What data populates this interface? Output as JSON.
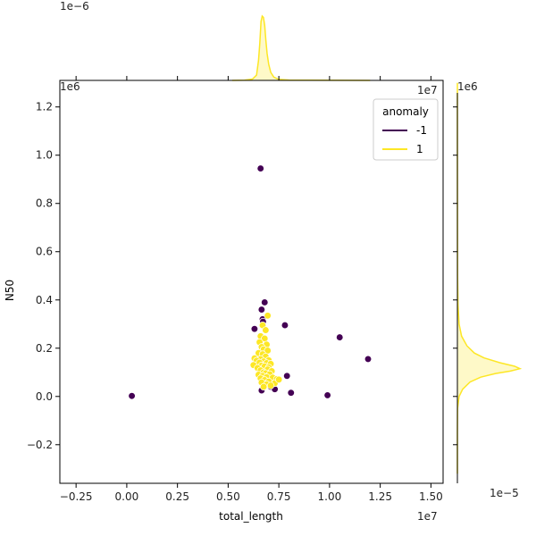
{
  "chart_data": {
    "type": "scatter",
    "title": "",
    "xlabel": "total_length",
    "ylabel": "N50",
    "x_scale_label": "1e7",
    "y_scale_label": "1e6",
    "top_marginal_scale_label": "1e−6",
    "right_marginal_scale_label": "1e−5",
    "xlim": [
      -3300000,
      15600000
    ],
    "ylim": [
      -360000,
      1310000
    ],
    "x_ticks": [
      -2500000,
      0,
      2500000,
      5000000,
      7500000,
      10000000,
      12500000,
      15000000
    ],
    "x_tick_labels": [
      "−0.25",
      "0.00",
      "0.25",
      "0.50",
      "0.75",
      "1.00",
      "1.25",
      "1.50"
    ],
    "y_ticks": [
      -200000,
      0,
      200000,
      400000,
      600000,
      800000,
      1000000,
      1200000
    ],
    "y_tick_labels": [
      "−0.2",
      "0.0",
      "0.2",
      "0.4",
      "0.6",
      "0.8",
      "1.0",
      "1.2"
    ],
    "grid": false,
    "legend": {
      "title": "anomaly",
      "placement": "top-right",
      "entries": [
        {
          "label": "-1",
          "color": "#440154"
        },
        {
          "label": "1",
          "color": "#fde725"
        }
      ]
    },
    "series": [
      {
        "name": "-1",
        "color": "#440154",
        "points": [
          [
            6600000,
            945000
          ],
          [
            6800000,
            390000
          ],
          [
            6650000,
            360000
          ],
          [
            6700000,
            320000
          ],
          [
            6720000,
            310000
          ],
          [
            7800000,
            295000
          ],
          [
            6300000,
            280000
          ],
          [
            10500000,
            245000
          ],
          [
            11900000,
            155000
          ],
          [
            7900000,
            85000
          ],
          [
            6550000,
            180000
          ],
          [
            6500000,
            160000
          ],
          [
            7100000,
            40000
          ],
          [
            7300000,
            30000
          ],
          [
            6650000,
            25000
          ],
          [
            8100000,
            15000
          ],
          [
            9900000,
            5000
          ],
          [
            250000,
            2000
          ]
        ]
      },
      {
        "name": "1",
        "color": "#fde725",
        "points": [
          [
            6950000,
            335000
          ],
          [
            6700000,
            295000
          ],
          [
            6850000,
            275000
          ],
          [
            6600000,
            250000
          ],
          [
            6800000,
            240000
          ],
          [
            6550000,
            225000
          ],
          [
            6900000,
            215000
          ],
          [
            6650000,
            205000
          ],
          [
            6750000,
            195000
          ],
          [
            6950000,
            190000
          ],
          [
            6500000,
            180000
          ],
          [
            6700000,
            175000
          ],
          [
            6850000,
            165000
          ],
          [
            6300000,
            158000
          ],
          [
            6600000,
            155000
          ],
          [
            7000000,
            150000
          ],
          [
            6400000,
            148000
          ],
          [
            6750000,
            145000
          ],
          [
            6550000,
            140000
          ],
          [
            6900000,
            138000
          ],
          [
            7100000,
            135000
          ],
          [
            6250000,
            130000
          ],
          [
            6650000,
            128000
          ],
          [
            6800000,
            125000
          ],
          [
            7000000,
            120000
          ],
          [
            6450000,
            118000
          ],
          [
            6950000,
            112000
          ],
          [
            6600000,
            108000
          ],
          [
            7150000,
            105000
          ],
          [
            6750000,
            100000
          ],
          [
            6850000,
            96000
          ],
          [
            7050000,
            92000
          ],
          [
            6500000,
            90000
          ],
          [
            6700000,
            85000
          ],
          [
            6900000,
            80000
          ],
          [
            7200000,
            78000
          ],
          [
            6600000,
            75000
          ],
          [
            7400000,
            72000
          ],
          [
            6800000,
            68000
          ],
          [
            7000000,
            62000
          ],
          [
            6650000,
            58000
          ],
          [
            7300000,
            55000
          ],
          [
            6900000,
            50000
          ],
          [
            7100000,
            45000
          ],
          [
            6750000,
            40000
          ],
          [
            7500000,
            70000
          ]
        ]
      }
    ],
    "marginal_top": {
      "type": "kde",
      "peak_x": 6700000,
      "peak_density": 9.6e-07,
      "x_density": [
        [
          5200000,
          0
        ],
        [
          5800000,
          4e-09
        ],
        [
          6200000,
          2e-08
        ],
        [
          6400000,
          8e-08
        ],
        [
          6500000,
          3e-07
        ],
        [
          6560000,
          5.5e-07
        ],
        [
          6620000,
          8.8e-07
        ],
        [
          6680000,
          9.6e-07
        ],
        [
          6740000,
          9.4e-07
        ],
        [
          6800000,
          8.2e-07
        ],
        [
          6860000,
          6e-07
        ],
        [
          6920000,
          4e-07
        ],
        [
          7000000,
          2.4e-07
        ],
        [
          7100000,
          1.2e-07
        ],
        [
          7250000,
          5e-08
        ],
        [
          7500000,
          1.5e-08
        ],
        [
          8000000,
          5e-09
        ],
        [
          9000000,
          2e-09
        ],
        [
          10500000,
          1e-09
        ],
        [
          12000000,
          0
        ]
      ]
    },
    "marginal_right": {
      "type": "kde",
      "peak_y": 115000,
      "peak_density": 2.95e-05,
      "y_density": [
        [
          -320000,
          0
        ],
        [
          -150000,
          1e-08
        ],
        [
          -50000,
          1e-07
        ],
        [
          0,
          8e-07
        ],
        [
          30000,
          2.5e-06
        ],
        [
          60000,
          6e-06
        ],
        [
          80000,
          1.1e-05
        ],
        [
          95000,
          1.8e-05
        ],
        [
          105000,
          2.5e-05
        ],
        [
          115000,
          2.95e-05
        ],
        [
          125000,
          2.7e-05
        ],
        [
          140000,
          2e-05
        ],
        [
          160000,
          1.25e-05
        ],
        [
          180000,
          8e-06
        ],
        [
          210000,
          4.5e-06
        ],
        [
          250000,
          2e-06
        ],
        [
          300000,
          8e-07
        ],
        [
          380000,
          3e-07
        ],
        [
          500000,
          1e-07
        ],
        [
          700000,
          3e-08
        ],
        [
          1000000,
          1e-08
        ],
        [
          1300000,
          0
        ]
      ]
    }
  }
}
